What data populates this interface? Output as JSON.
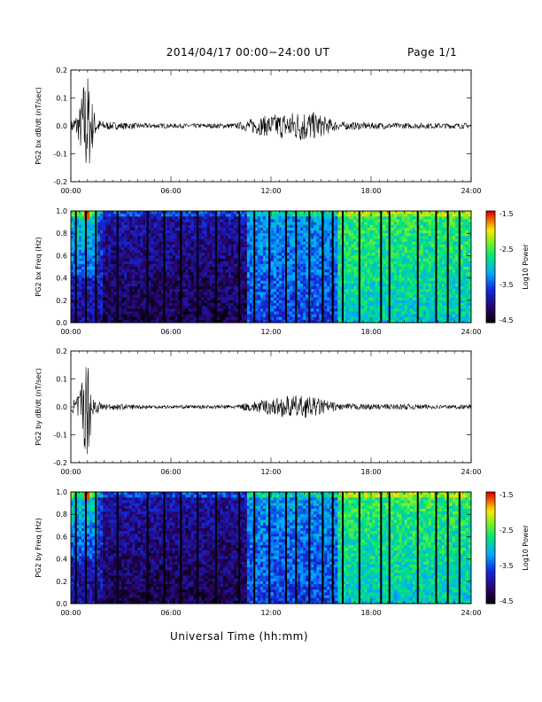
{
  "header": {
    "title": "2014/04/17  00:00−24:00 UT",
    "page": "Page 1/1"
  },
  "xaxis": {
    "label": "Universal Time (hh:mm)",
    "ticks": [
      "00:00",
      "06:00",
      "12:00",
      "18:00",
      "24:00"
    ]
  },
  "colorbar": {
    "label": "Log10 Power",
    "ticks": [
      "-1.5",
      "-2.5",
      "-3.5",
      "-4.5"
    ],
    "range": [
      -4.5,
      -1.5
    ]
  },
  "chart_data": [
    {
      "type": "line",
      "ylabel": "PG2 bx dB/dt (nT/sec)",
      "ylim": [
        -0.2,
        0.2
      ],
      "yticks": [
        "0.2",
        "0.1",
        "0.0",
        "-0.1",
        "-0.2"
      ],
      "xlim_hours": [
        0,
        24
      ],
      "envelope_hours": [
        0,
        0.5,
        0.8,
        1.0,
        1.2,
        1.5,
        2,
        4,
        6,
        8,
        10,
        11,
        12,
        13,
        14,
        15,
        16,
        18,
        20,
        22,
        24
      ],
      "envelope_amplitude": [
        0.02,
        0.06,
        0.18,
        0.2,
        0.12,
        0.03,
        0.015,
        0.01,
        0.008,
        0.008,
        0.01,
        0.03,
        0.04,
        0.05,
        0.06,
        0.04,
        0.015,
        0.012,
        0.01,
        0.01,
        0.01
      ]
    },
    {
      "type": "heatmap",
      "ylabel": "PG2 bx Freq (Hz)",
      "ylim": [
        0,
        1.0
      ],
      "yticks": [
        "1.0",
        "0.8",
        "0.6",
        "0.4",
        "0.2",
        "0.0"
      ],
      "xlim_hours": [
        0,
        24
      ],
      "colorbar_range": [
        -4.5,
        -1.5
      ]
    },
    {
      "type": "line",
      "ylabel": "PG2 by dB/dt (nT/sec)",
      "ylim": [
        -0.2,
        0.2
      ],
      "yticks": [
        "0.2",
        "0.1",
        "0.0",
        "-0.1",
        "-0.2"
      ],
      "xlim_hours": [
        0,
        24
      ],
      "envelope_hours": [
        0,
        0.5,
        0.8,
        1.0,
        1.2,
        1.5,
        2,
        4,
        6,
        8,
        10,
        11,
        12,
        13,
        14,
        15,
        16,
        18,
        20,
        22,
        24
      ],
      "envelope_amplitude": [
        0.015,
        0.05,
        0.15,
        0.18,
        0.1,
        0.03,
        0.012,
        0.008,
        0.006,
        0.006,
        0.008,
        0.02,
        0.03,
        0.04,
        0.04,
        0.03,
        0.012,
        0.01,
        0.01,
        0.008,
        0.008
      ]
    },
    {
      "type": "heatmap",
      "ylabel": "PG2 by Freq (Hz)",
      "ylim": [
        0,
        1.0
      ],
      "yticks": [
        "1.0",
        "0.8",
        "0.6",
        "0.4",
        "0.2",
        "0.0"
      ],
      "xlim_hours": [
        0,
        24
      ],
      "colorbar_range": [
        -4.5,
        -1.5
      ]
    }
  ],
  "vertical_gap_lines_hours": [
    0.3,
    0.9,
    1.5,
    2.8,
    4.6,
    5.6,
    6.6,
    7.6,
    8.7,
    10.1,
    11.0,
    11.9,
    12.9,
    13.5,
    14.3,
    15.1,
    15.7,
    16.3,
    17.3,
    18.6,
    19.1,
    20.8,
    21.9,
    22.6,
    23.3
  ]
}
